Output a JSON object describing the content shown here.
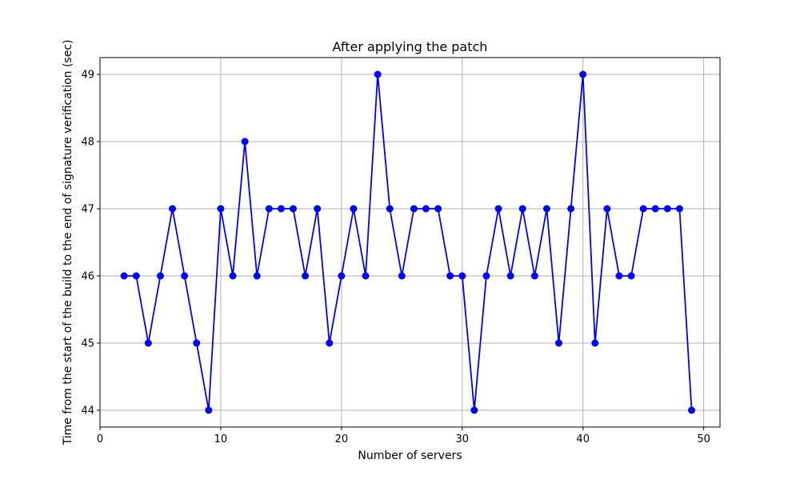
{
  "chart_data": {
    "type": "line",
    "title": "After applying the patch",
    "xlabel": "Number of servers",
    "ylabel": "Time from the start of the build to the end of signature verification (sec)",
    "xlim": [
      0,
      51.35
    ],
    "ylim": [
      43.75,
      49.25
    ],
    "xticks": [
      0,
      10,
      20,
      30,
      40,
      50
    ],
    "yticks": [
      44,
      45,
      46,
      47,
      48,
      49
    ],
    "grid": true,
    "colors": {
      "series": "#0000ff",
      "grid": "#b0b0b0",
      "axes": "#000000"
    },
    "marker": "circle",
    "series": [
      {
        "x": [
          2,
          3,
          4,
          5,
          6,
          7,
          8,
          9,
          10,
          11,
          12,
          13,
          14,
          15,
          16,
          17,
          18,
          19,
          20,
          21,
          22,
          23,
          24,
          25,
          26,
          27,
          28,
          29,
          30,
          31,
          32,
          33,
          34,
          35,
          36,
          37,
          38,
          39,
          40,
          41,
          42,
          43,
          44,
          45,
          46,
          47,
          48,
          49
        ],
        "values": [
          46,
          46,
          45,
          46,
          47,
          46,
          45,
          44,
          47,
          46,
          48,
          46,
          47,
          47,
          47,
          46,
          47,
          45,
          46,
          47,
          46,
          49,
          47,
          46,
          47,
          47,
          47,
          46,
          46,
          44,
          46,
          47,
          46,
          47,
          46,
          47,
          45,
          47,
          49,
          45,
          47,
          46,
          46,
          47,
          47,
          47,
          47,
          44
        ]
      }
    ]
  }
}
